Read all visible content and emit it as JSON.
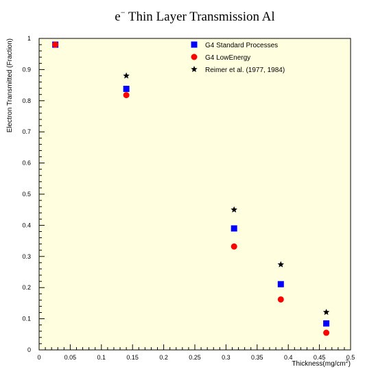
{
  "chart_data": {
    "type": "scatter",
    "title": {
      "prefix": "e",
      "superscript": "−",
      "rest": " Thin Layer Transmission Al"
    },
    "xlabel": "Thickness(mg/cm",
    "xlabel_superscript": "2",
    "xlabel_suffix": ")",
    "ylabel": "Electron Transmitted (Fraction)",
    "xlim": [
      0,
      0.5
    ],
    "ylim": [
      0,
      1
    ],
    "x_ticks": [
      0,
      0.05,
      0.1,
      0.15,
      0.2,
      0.25,
      0.3,
      0.35,
      0.4,
      0.45,
      0.5
    ],
    "x_tick_labels": [
      "0",
      "0.05",
      "0.1",
      "0.15",
      "0.2",
      "0.25",
      "0.3",
      "0.35",
      "0.4",
      "0.45",
      "0.5"
    ],
    "y_ticks": [
      0,
      0.1,
      0.2,
      0.3,
      0.4,
      0.5,
      0.6,
      0.7,
      0.8,
      0.9,
      1
    ],
    "y_tick_labels": [
      "0",
      "0.1",
      "0.2",
      "0.3",
      "0.4",
      "0.5",
      "0.6",
      "0.7",
      "0.8",
      "0.9",
      "1"
    ],
    "plot_background": "#ffffe0",
    "legend_position": "top-right",
    "series": [
      {
        "name": "G4 Standard Processes",
        "marker": "square",
        "color": "#0000ff",
        "points": [
          {
            "x": 0.026,
            "y": 0.98
          },
          {
            "x": 0.14,
            "y": 0.838
          },
          {
            "x": 0.313,
            "y": 0.39
          },
          {
            "x": 0.388,
            "y": 0.211
          },
          {
            "x": 0.461,
            "y": 0.085
          }
        ]
      },
      {
        "name": "G4 LowEnergy",
        "marker": "circle",
        "color": "#ff0000",
        "points": [
          {
            "x": 0.026,
            "y": 0.98
          },
          {
            "x": 0.14,
            "y": 0.818
          },
          {
            "x": 0.313,
            "y": 0.332
          },
          {
            "x": 0.388,
            "y": 0.162
          },
          {
            "x": 0.461,
            "y": 0.055
          }
        ]
      },
      {
        "name": "Reimer et al. (1977, 1984)",
        "marker": "star",
        "color": "#000000",
        "points": [
          {
            "x": 0.14,
            "y": 0.88
          },
          {
            "x": 0.313,
            "y": 0.45
          },
          {
            "x": 0.388,
            "y": 0.274
          },
          {
            "x": 0.461,
            "y": 0.121
          }
        ]
      }
    ]
  }
}
